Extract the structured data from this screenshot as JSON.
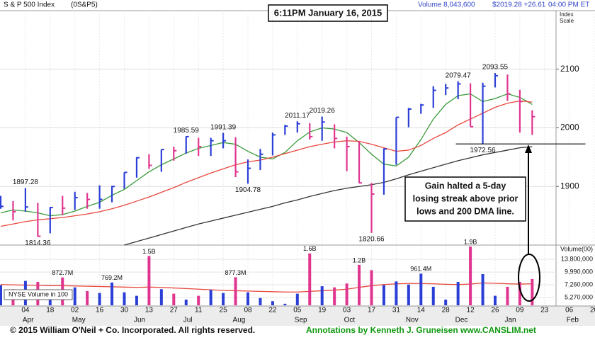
{
  "header": {
    "index_name": "S & P 500 Index",
    "symbol": "(0S&P5)",
    "volume": "Volume 8,043,600",
    "price": "$2019.28 +26.61",
    "time": "04:00 PM ET",
    "scale_label": [
      "Index",
      "Scale"
    ],
    "timestamp": "6:11PM January 16, 2015"
  },
  "annotation": [
    "Gain halted a 5-day",
    "losing streak above prior",
    "lows and 200 DMA line."
  ],
  "footer": {
    "copyright": "© 2015 William O'Neil + Co. Incorporated. All rights reserved.",
    "credit": "Annotations by Kenneth J. Gruneisen www.CANSLIM.net"
  },
  "chart_data": {
    "type": "ohlc",
    "categories": [
      null,
      null,
      "04",
      null,
      "18",
      null,
      "02",
      null,
      "16",
      null,
      "30",
      null,
      "13",
      null,
      "27",
      null,
      "11",
      null,
      "25",
      null,
      "08",
      null,
      "22",
      null,
      "05",
      null,
      "19",
      null,
      "03",
      null,
      "17",
      null,
      "31",
      null,
      "14",
      null,
      "28",
      null,
      "12",
      null,
      "26",
      null,
      "09",
      null,
      "23",
      null,
      "06",
      null,
      "20"
    ],
    "months": [
      null,
      null,
      "Apr",
      null,
      null,
      null,
      "May",
      null,
      null,
      null,
      null,
      "Jun",
      null,
      null,
      null,
      "Jul",
      null,
      null,
      null,
      "Aug",
      null,
      null,
      null,
      null,
      "Sep",
      null,
      null,
      null,
      "Oct",
      null,
      null,
      null,
      null,
      "Nov",
      null,
      null,
      null,
      "Dec",
      null,
      null,
      null,
      "Jan",
      null,
      null,
      null,
      null,
      "Feb",
      null,
      null
    ],
    "high": [
      1884,
      1875,
      1897.28,
      1872,
      1865,
      1884,
      1891,
      1889,
      1902,
      1901,
      1924,
      1950,
      1955,
      1963,
      1968,
      1985.59,
      1983,
      1983,
      1991.39,
      1984,
      1946,
      1964,
      1992,
      2005,
      2011.17,
      2008,
      2019.26,
      2006,
      1985,
      1977,
      1906,
      1965,
      2018,
      2034,
      2041,
      2071,
      2075,
      2079.47,
      2076,
      2077,
      2093.55,
      2091,
      2065,
      2030,
      null,
      null,
      null,
      null,
      null
    ],
    "low": [
      1862,
      1842,
      1857,
      1814.36,
      1820,
      1851,
      1860,
      1862,
      1862,
      1873,
      1896,
      1915,
      1930,
      1925,
      1944,
      1956,
      1952,
      1952,
      1965,
      1916,
      1904.78,
      1928,
      1953,
      1988,
      1992,
      1980,
      1978,
      1965,
      1926,
      1906,
      1820.66,
      1886,
      1937,
      2001,
      2024,
      2034,
      2056,
      2049,
      2002,
      1972.56,
      2069,
      2046,
      1992,
      1988,
      null,
      null,
      null,
      null,
      null
    ],
    "close": [
      1866,
      1857,
      1865,
      1815,
      1864,
      1863,
      1881,
      1878,
      1878,
      1900,
      1924,
      1949,
      1936,
      1963,
      1961,
      1985,
      1968,
      1978,
      1978,
      1925,
      1931,
      1955,
      1988,
      2003,
      2007,
      1985,
      2010,
      1982,
      1968,
      1906,
      1887,
      1964,
      2018,
      2032,
      2039,
      2064,
      2068,
      2075,
      2002,
      2071,
      2089,
      2058,
      2045,
      2019,
      null,
      null,
      null,
      null,
      null
    ],
    "high_labels": [
      null,
      null,
      "1897.28",
      null,
      null,
      null,
      null,
      null,
      null,
      null,
      null,
      null,
      null,
      null,
      null,
      "1985.59",
      null,
      null,
      "1991.39",
      null,
      null,
      null,
      null,
      null,
      "2011.17",
      null,
      "2019.26",
      null,
      null,
      null,
      null,
      null,
      null,
      null,
      null,
      null,
      null,
      "2079.47",
      null,
      null,
      "2093.55",
      null,
      null,
      null,
      null,
      null,
      null,
      null,
      null
    ],
    "low_labels": [
      null,
      null,
      null,
      "1814.36",
      null,
      null,
      null,
      null,
      null,
      null,
      null,
      null,
      null,
      null,
      null,
      null,
      null,
      null,
      null,
      null,
      "1904.78",
      null,
      null,
      null,
      null,
      null,
      null,
      null,
      null,
      null,
      "1820.66",
      null,
      null,
      null,
      null,
      null,
      null,
      null,
      null,
      "1972.56",
      null,
      null,
      null,
      null,
      null,
      null,
      null,
      null,
      null
    ],
    "up_color": "#2b3fd6",
    "down_color": "#e0358f",
    "lines": [
      {
        "color": "#3a9a3a",
        "values": [
          1855,
          1860,
          1858,
          1855,
          1850,
          1852,
          1858,
          1866,
          1873,
          1885,
          1895,
          1910,
          1925,
          1937,
          1947,
          1957,
          1965,
          1970,
          1975,
          1972,
          1960,
          1950,
          1947,
          1958,
          1978,
          1993,
          2000,
          1998,
          1992,
          1975,
          1955,
          1938,
          1935,
          1950,
          1980,
          2015,
          2040,
          2055,
          2058,
          2045,
          2050,
          2058,
          2052,
          2040,
          null,
          null,
          null,
          null,
          null
        ]
      },
      {
        "color": "#e8473c",
        "values": [
          1832,
          1836,
          1840,
          1843,
          1845,
          1847,
          1850,
          1853,
          1857,
          1862,
          1868,
          1875,
          1882,
          1890,
          1898,
          1907,
          1915,
          1923,
          1930,
          1937,
          1942,
          1945,
          1950,
          1956,
          1962,
          1968,
          1972,
          1976,
          1978,
          1977,
          1972,
          1966,
          1960,
          1962,
          1970,
          1982,
          1992,
          2005,
          2015,
          2025,
          2035,
          2042,
          2046,
          2044,
          null,
          null,
          null,
          null,
          null
        ]
      },
      {
        "color": "#333333",
        "values": [
          null,
          null,
          null,
          null,
          null,
          null,
          null,
          null,
          null,
          null,
          1800,
          1806,
          1812,
          1818,
          1824,
          1830,
          1836,
          1841,
          1846,
          1851,
          1856,
          1861,
          1866,
          1872,
          1877,
          1883,
          1888,
          1893,
          1897,
          1900,
          1903,
          1907,
          1913,
          1920,
          1926,
          1932,
          1938,
          1944,
          1949,
          1954,
          1958,
          1962,
          1966,
          1968,
          null,
          null,
          null,
          null,
          null
        ]
      }
    ],
    "ylim": [
      1800,
      2200
    ],
    "yticks": [
      1900,
      2000,
      2100
    ],
    "grid": true,
    "volume": {
      "axis_label": "Volume(00)",
      "legend": "NYSE Volume in 100",
      "log": true,
      "values": [
        7200000,
        6500000,
        8000000,
        7800000,
        6000000,
        8727000,
        6800000,
        6200000,
        5900000,
        7692000,
        6000000,
        5500000,
        15000000,
        6500000,
        5800000,
        5000000,
        5500000,
        6400000,
        5900000,
        8773000,
        6000000,
        5200000,
        4800000,
        4500000,
        5800000,
        16000000,
        7000000,
        6800000,
        7500000,
        12000000,
        10500000,
        7200000,
        7900000,
        7300000,
        9614000,
        6900000,
        5000000,
        7800000,
        19000000,
        9500000,
        5500000,
        6900000,
        7800000,
        8400000,
        null,
        null,
        null,
        null,
        null
      ],
      "value_labels": [
        null,
        null,
        null,
        null,
        null,
        "872.7M",
        null,
        null,
        null,
        "769.2M",
        null,
        null,
        "1.5B",
        null,
        null,
        null,
        null,
        null,
        null,
        "877.3M",
        null,
        null,
        null,
        null,
        null,
        "1.6B",
        null,
        null,
        null,
        "1.2B",
        null,
        null,
        null,
        null,
        "961.4M",
        null,
        null,
        null,
        "1.9B",
        null,
        null,
        null,
        null,
        null,
        null,
        null,
        null,
        null,
        null
      ],
      "line": {
        "color": "#e8473c",
        "values": [
          7300000,
          7250000,
          7200000,
          7150000,
          7100000,
          7100000,
          7050000,
          7000000,
          6950000,
          6900000,
          6850000,
          6800000,
          6850000,
          6800000,
          6700000,
          6600000,
          6500000,
          6400000,
          6300000,
          6250000,
          6200000,
          6150000,
          6100000,
          6050000,
          6050000,
          6150000,
          6250000,
          6350000,
          6500000,
          6800000,
          7100000,
          7300000,
          7450000,
          7500000,
          7500000,
          7450000,
          7350000,
          7300000,
          7400000,
          7600000,
          7550000,
          7450000,
          7400000,
          7450000,
          null,
          null,
          null,
          null,
          null
        ]
      },
      "ylim": [
        4330000,
        19400000
      ],
      "yticks": [
        {
          "value": 13800000,
          "label": "13,800,000"
        },
        {
          "value": 9990000,
          "label": "9,990,000"
        },
        {
          "value": 7260000,
          "label": "7,260,000"
        },
        {
          "value": 5270000,
          "label": "5,270,000"
        }
      ]
    }
  }
}
